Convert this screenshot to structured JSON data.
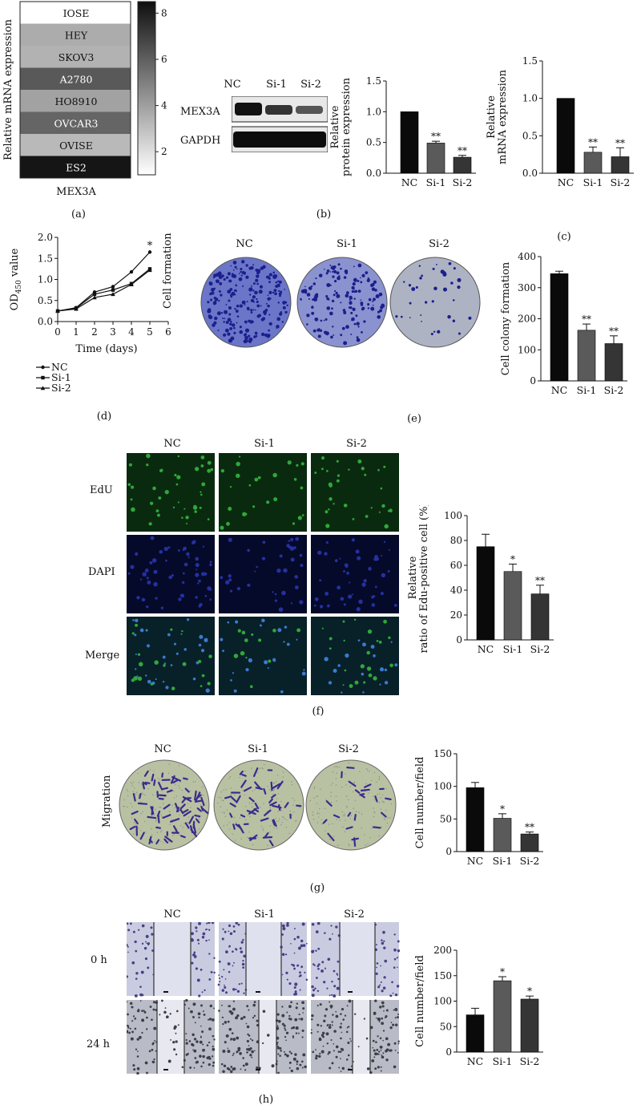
{
  "panel_labels": {
    "a": "(a)",
    "b": "(b)",
    "c": "(c)",
    "d": "(d)",
    "e": "(e)",
    "f": "(f)",
    "g": "(g)",
    "h": "(h)"
  },
  "groups": [
    "NC",
    "Si-1",
    "Si-2"
  ],
  "western_blot": {
    "bands": [
      "MEX3A",
      "GAPDH"
    ]
  },
  "image_panels": {
    "e_row_label": "Cell formation",
    "f_row_labels": [
      "EdU",
      "DAPI",
      "Merge"
    ],
    "g_row_label": "Migration",
    "h_row_labels": [
      "0 h",
      "24 h"
    ]
  },
  "colors": {
    "bar_nc": "#0a0a0a",
    "bar_si1": "#5a5a5a",
    "bar_si2": "#353535",
    "edu": "#2fa83a",
    "dapi": "#2630a0",
    "crystal_violet": "#3a2b8c"
  },
  "chart_data": [
    {
      "id": "a",
      "type": "heatmap",
      "ylabel": "Relative mRNA expression",
      "xlabel": "MEX3A",
      "rows": [
        "IOSE",
        "HEY",
        "SKOV3",
        "A2780",
        "HO8910",
        "OVCAR3",
        "OVISE",
        "ES2"
      ],
      "values": [
        1.0,
        3.6,
        3.4,
        6.2,
        3.9,
        5.8,
        3.2,
        8.3
      ],
      "colorbar": {
        "min": 1,
        "max": 8.5,
        "ticks": [
          "2",
          "4",
          "6",
          "8"
        ],
        "tick_values": [
          2,
          4,
          6,
          8
        ]
      }
    },
    {
      "id": "b",
      "type": "bar",
      "ylabel_lines": [
        "Relative",
        "protein expression"
      ],
      "categories": [
        "NC",
        "Si-1",
        "Si-2"
      ],
      "values": [
        1.0,
        0.49,
        0.26
      ],
      "errors": [
        0,
        0.03,
        0.03
      ],
      "sig": [
        "",
        "**",
        "**"
      ],
      "ylim": [
        0,
        1.5
      ],
      "yticks": [
        "0.0",
        "0.5",
        "1.0",
        "1.5"
      ],
      "ytick_values": [
        0,
        0.5,
        1.0,
        1.5
      ]
    },
    {
      "id": "c",
      "type": "bar",
      "ylabel_lines": [
        "Relative",
        "mRNA expression"
      ],
      "categories": [
        "NC",
        "Si-1",
        "Si-2"
      ],
      "values": [
        1.0,
        0.28,
        0.22
      ],
      "errors": [
        0,
        0.07,
        0.12
      ],
      "sig": [
        "",
        "**",
        "**"
      ],
      "ylim": [
        0,
        1.5
      ],
      "yticks": [
        "0.0",
        "0.5",
        "1.0",
        "1.5"
      ],
      "ytick_values": [
        0,
        0.5,
        1.0,
        1.5
      ]
    },
    {
      "id": "d",
      "type": "line",
      "ylabel": "OD",
      "ylabel_sub": "450",
      "ylabel_suffix": " value",
      "xlabel": "Time (days)",
      "x": [
        0,
        1,
        2,
        3,
        4,
        5
      ],
      "series": [
        {
          "name": "NC",
          "values": [
            0.25,
            0.33,
            0.7,
            0.83,
            1.18,
            1.65
          ]
        },
        {
          "name": "Si-1",
          "values": [
            0.25,
            0.32,
            0.65,
            0.75,
            0.9,
            1.25
          ]
        },
        {
          "name": "Si-2",
          "values": [
            0.25,
            0.3,
            0.57,
            0.65,
            0.88,
            1.22
          ]
        }
      ],
      "xlim": [
        0,
        6
      ],
      "xticks": [
        "0",
        "1",
        "2",
        "3",
        "4",
        "5",
        "6"
      ],
      "xtick_values": [
        0,
        1,
        2,
        3,
        4,
        5,
        6
      ],
      "ylim": [
        0,
        2.0
      ],
      "yticks": [
        "0.0",
        "0.5",
        "1.0",
        "1.5",
        "2.0"
      ],
      "ytick_values": [
        0,
        0.5,
        1.0,
        1.5,
        2.0
      ],
      "annotation": {
        "x": 5,
        "y": 1.65,
        "text": "*"
      },
      "legend_position": "bottom"
    },
    {
      "id": "e",
      "type": "bar",
      "ylabel_lines": [
        "Cell colony formation"
      ],
      "categories": [
        "NC",
        "Si-1",
        "Si-2"
      ],
      "values": [
        345,
        163,
        120
      ],
      "errors": [
        8,
        20,
        25
      ],
      "sig": [
        "",
        "**",
        "**"
      ],
      "ylim": [
        0,
        400
      ],
      "yticks": [
        "0",
        "100",
        "200",
        "300",
        "400"
      ],
      "ytick_values": [
        0,
        100,
        200,
        300,
        400
      ]
    },
    {
      "id": "f",
      "type": "bar",
      "ylabel_lines": [
        "Relative",
        "ratio of Edu-positive cell (%)"
      ],
      "categories": [
        "NC",
        "Si-1",
        "Si-2"
      ],
      "values": [
        75,
        55,
        37
      ],
      "errors": [
        10,
        6,
        7
      ],
      "sig": [
        "",
        "*",
        "**"
      ],
      "ylim": [
        0,
        100
      ],
      "yticks": [
        "0",
        "20",
        "40",
        "60",
        "80",
        "100"
      ],
      "ytick_values": [
        0,
        20,
        40,
        60,
        80,
        100
      ]
    },
    {
      "id": "g",
      "type": "bar",
      "ylabel_lines": [
        "Cell number/field"
      ],
      "categories": [
        "NC",
        "Si-1",
        "Si-2"
      ],
      "values": [
        98,
        51,
        27
      ],
      "errors": [
        8,
        7,
        3
      ],
      "sig": [
        "",
        "*",
        "**"
      ],
      "ylim": [
        0,
        150
      ],
      "yticks": [
        "0",
        "50",
        "100",
        "150"
      ],
      "ytick_values": [
        0,
        50,
        100,
        150
      ]
    },
    {
      "id": "h",
      "type": "bar",
      "ylabel_lines": [
        "Cell number/field"
      ],
      "categories": [
        "NC",
        "Si-1",
        "Si-2"
      ],
      "values": [
        73,
        140,
        104
      ],
      "errors": [
        13,
        8,
        6
      ],
      "sig": [
        "",
        "*",
        "*"
      ],
      "ylim": [
        0,
        200
      ],
      "yticks": [
        "0",
        "50",
        "100",
        "150",
        "200"
      ],
      "ytick_values": [
        0,
        50,
        100,
        150,
        200
      ]
    }
  ]
}
